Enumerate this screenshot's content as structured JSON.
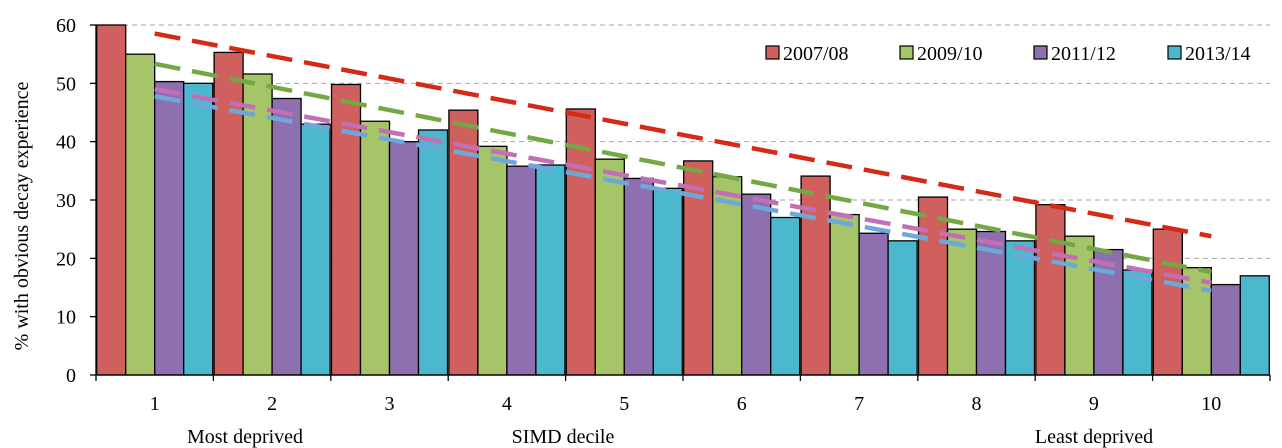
{
  "chart_data": {
    "type": "bar",
    "title": "",
    "xlabel": "SIMD decile",
    "ylabel": "% with obvious decay experience",
    "ylim": [
      0,
      60
    ],
    "y_ticks": [
      "0",
      "10",
      "20",
      "30",
      "40",
      "50",
      "60"
    ],
    "categories": [
      "1",
      "2",
      "3",
      "4",
      "5",
      "6",
      "7",
      "8",
      "9",
      "10"
    ],
    "x_sublabels": {
      "left": "Most deprived",
      "center": "SIMD decile",
      "right": "Least deprived"
    },
    "grid": "horizontal dashed",
    "legend_position": "top-right",
    "series": [
      {
        "name": "2007/08",
        "color": "#D0605E",
        "trend_color": "#D42A17",
        "values": [
          60,
          55.3,
          49.8,
          45.4,
          45.6,
          36.7,
          34.1,
          30.5,
          29.2,
          25
        ]
      },
      {
        "name": "2009/10",
        "color": "#A6C568",
        "trend_color": "#73A845",
        "values": [
          55,
          51.6,
          43.5,
          39.2,
          37,
          34,
          27.5,
          25,
          23.8,
          18.4
        ]
      },
      {
        "name": "2011/12",
        "color": "#8E6FAF",
        "trend_color": "#C26FB6",
        "values": [
          50.3,
          47.4,
          40,
          35.8,
          33.7,
          31,
          24.3,
          24.6,
          21.5,
          15.5
        ]
      },
      {
        "name": "2013/14",
        "color": "#4CB8CE",
        "trend_color": "#6EA8DB",
        "values": [
          50,
          43,
          42,
          36,
          32,
          27,
          23,
          23,
          18,
          17
        ]
      }
    ]
  }
}
